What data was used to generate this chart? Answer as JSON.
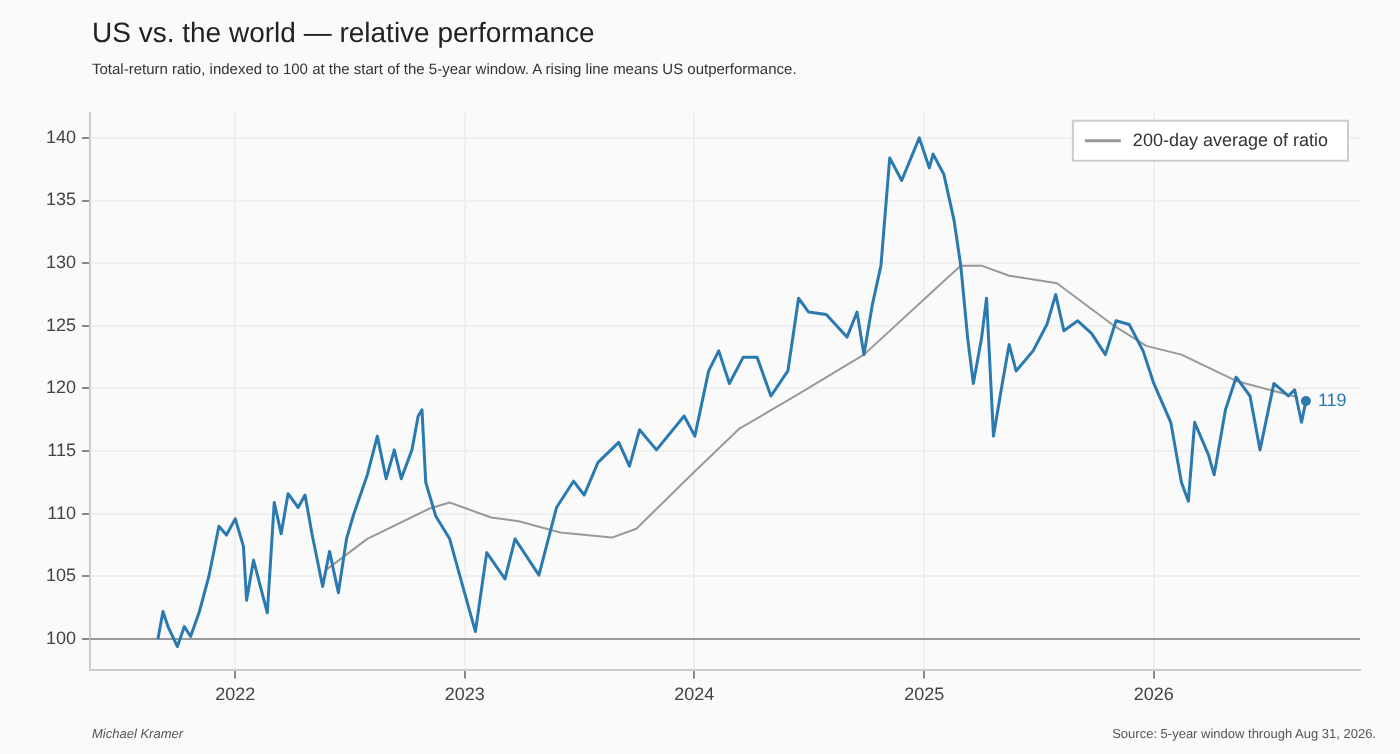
{
  "chart_data": {
    "type": "line",
    "title": "US vs. the world — relative performance",
    "subtitle": "Total-return ratio, indexed to 100 at the start of the 5-year window. A rising line means US outperformance.",
    "xlim": [
      "2021-05-15",
      "2026-11-25"
    ],
    "xticks": [
      "2022",
      "2023",
      "2024",
      "2025",
      "2026"
    ],
    "ylim": [
      97.5,
      142
    ],
    "yticks": [
      100,
      105,
      110,
      115,
      120,
      125,
      130,
      135,
      140
    ],
    "grid": true,
    "legend": "top right",
    "marker": "none",
    "line_style": "solid",
    "ref_lines": [
      {
        "axis": "y",
        "value": 100,
        "color": "#999999"
      }
    ],
    "annotations": [
      {
        "text": "119",
        "x": "2026-08-31",
        "y": 119
      },
      "Michael Kramer",
      "Source: 5-year window through Aug 31, 2026."
    ],
    "series": [
      {
        "color": "#2a7ab0",
        "x": [
          "2021-08-31",
          "2021-09-08",
          "2021-09-16",
          "2021-10-01",
          "2021-10-12",
          "2021-10-22",
          "2021-11-05",
          "2021-11-20",
          "2021-12-06",
          "2021-12-18",
          "2022-01-01",
          "2022-01-14",
          "2022-01-19",
          "2022-01-30",
          "2022-02-21",
          "2022-03-04",
          "2022-03-15",
          "2022-03-26",
          "2022-04-11",
          "2022-04-22",
          "2022-05-03",
          "2022-05-20",
          "2022-05-31",
          "2022-06-14",
          "2022-06-27",
          "2022-07-08",
          "2022-07-30",
          "2022-08-15",
          "2022-08-29",
          "2022-09-11",
          "2022-09-22",
          "2022-10-09",
          "2022-10-19",
          "2022-10-25",
          "2022-10-31",
          "2022-11-16",
          "2022-12-08",
          "2022-12-30",
          "2023-01-18",
          "2023-02-05",
          "2023-03-06",
          "2023-03-22",
          "2023-04-29",
          "2023-05-27",
          "2023-06-23",
          "2023-07-10",
          "2023-08-01",
          "2023-09-03",
          "2023-09-20",
          "2023-10-06",
          "2023-11-02",
          "2023-12-16",
          "2024-01-02",
          "2024-01-24",
          "2024-02-09",
          "2024-02-26",
          "2024-03-19",
          "2024-04-10",
          "2024-05-02",
          "2024-05-29",
          "2024-06-15",
          "2024-07-01",
          "2024-07-29",
          "2024-08-31",
          "2024-09-16",
          "2024-09-27",
          "2024-10-10",
          "2024-10-24",
          "2024-11-07",
          "2024-11-26",
          "2024-12-24",
          "2025-01-09",
          "2025-01-15",
          "2025-02-01",
          "2025-02-17",
          "2025-02-28",
          "2025-03-11",
          "2025-03-20",
          "2025-04-02",
          "2025-04-10",
          "2025-04-21",
          "2025-05-05",
          "2025-05-16",
          "2025-05-27",
          "2025-06-23",
          "2025-07-15",
          "2025-07-29",
          "2025-08-11",
          "2025-09-02",
          "2025-09-24",
          "2025-10-16",
          "2025-11-02",
          "2025-11-23",
          "2025-12-15",
          "2026-01-01",
          "2026-01-28",
          "2026-02-14",
          "2026-02-25",
          "2026-03-07",
          "2026-03-29",
          "2026-04-07",
          "2026-04-25",
          "2026-05-12",
          "2026-06-03",
          "2026-06-19",
          "2026-07-11",
          "2026-08-03",
          "2026-08-13",
          "2026-08-24",
          "2026-08-31"
        ],
        "values": [
          100,
          102.2,
          101,
          99.4,
          101,
          100.2,
          102.2,
          105,
          109,
          108.3,
          109.6,
          107.4,
          103.1,
          106.3,
          102.1,
          110.9,
          108.4,
          111.6,
          110.5,
          111.5,
          108.4,
          104.2,
          107,
          103.7,
          108,
          109.9,
          113.1,
          116.2,
          112.8,
          115.1,
          112.8,
          115.1,
          117.8,
          118.3,
          112.5,
          109.8,
          108,
          104,
          100.6,
          106.9,
          104.8,
          108,
          105.1,
          110.5,
          112.6,
          111.5,
          114.1,
          115.7,
          113.8,
          116.7,
          115.1,
          117.8,
          116.2,
          121.4,
          123,
          120.4,
          122.5,
          122.5,
          119.4,
          121.4,
          127.2,
          126.1,
          125.9,
          124.1,
          126.1,
          122.7,
          126.6,
          129.8,
          138.4,
          136.6,
          140,
          137.6,
          138.7,
          137.1,
          133.5,
          129.8,
          124,
          120.4,
          124,
          127.2,
          116.2,
          120.4,
          123.5,
          121.4,
          123,
          125.1,
          127.5,
          124.6,
          125.4,
          124.4,
          122.7,
          125.4,
          125.1,
          123,
          120.4,
          117.3,
          112.5,
          111,
          117.3,
          114.7,
          113.1,
          118.3,
          120.9,
          119.4,
          115.1,
          120.4,
          119.4,
          119.9,
          117.3,
          119
        ]
      },
      {
        "name": "200-day average of ratio",
        "color": "#999999",
        "x": [
          "2022-05-25",
          "2022-07-30",
          "2022-11-05",
          "2022-12-08",
          "2023-02-12",
          "2023-03-28",
          "2023-06-02",
          "2023-08-23",
          "2023-10-01",
          "2023-12-27",
          "2024-03-13",
          "2024-06-10",
          "2024-09-27",
          "2025-02-06",
          "2025-02-28",
          "2025-04-02",
          "2025-05-16",
          "2025-07-31",
          "2025-10-27",
          "2025-12-20",
          "2026-02-14",
          "2026-05-12",
          "2026-08-18"
        ],
        "values": [
          105.5,
          108,
          110.4,
          110.9,
          109.7,
          109.4,
          108.5,
          108.1,
          108.8,
          113.1,
          116.8,
          119.4,
          122.7,
          128.8,
          129.8,
          129.8,
          129,
          128.4,
          125.1,
          123.4,
          122.7,
          120.6,
          119.3
        ]
      }
    ]
  }
}
